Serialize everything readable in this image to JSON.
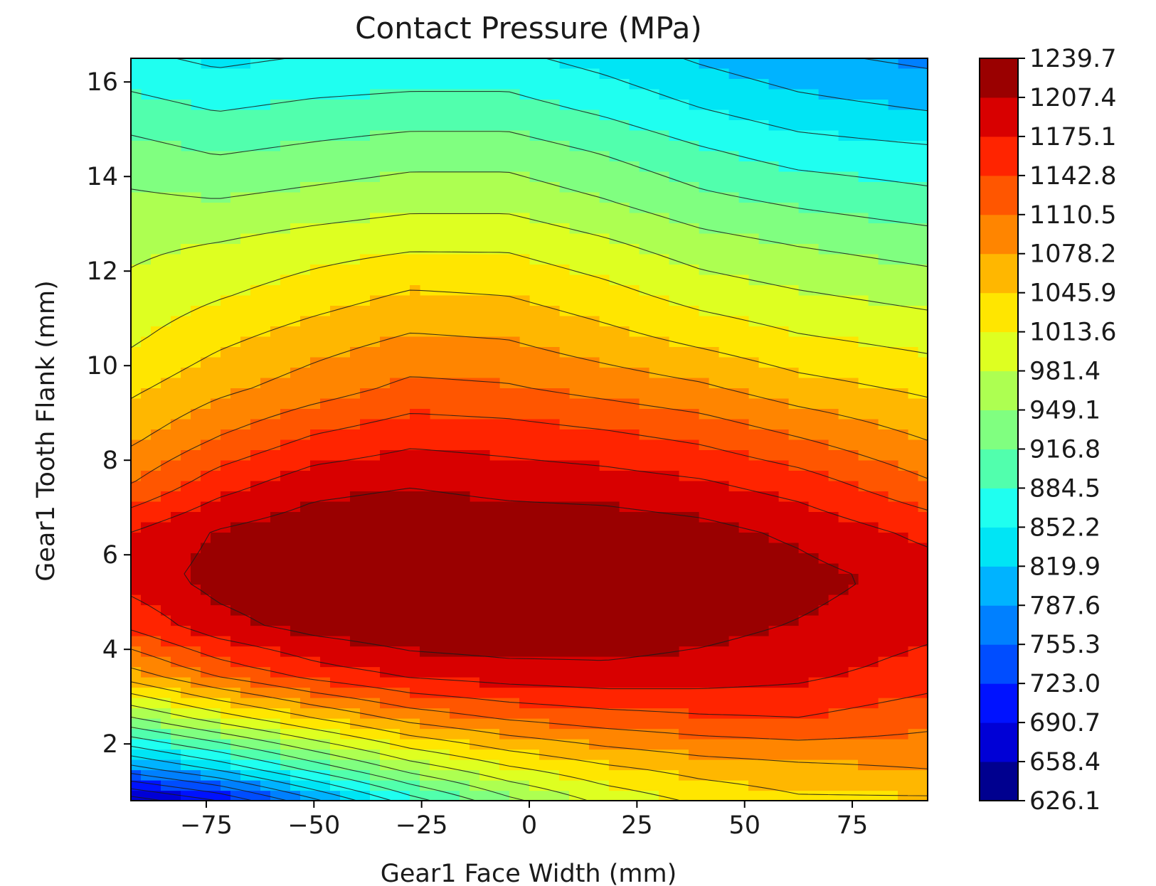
{
  "chart_data": {
    "type": "heatmap",
    "subtype": "filled-contour",
    "title": "Contact Pressure (MPa)",
    "xlabel": "Gear1 Face Width (mm)",
    "ylabel": "Gear1 Tooth Flank (mm)",
    "xlim": [
      -92.5,
      92.5
    ],
    "ylim": [
      0.8,
      16.5
    ],
    "xticks": [
      -75,
      -50,
      -25,
      0,
      25,
      50,
      75
    ],
    "xtick_labels": [
      "−75",
      "−50",
      "−25",
      "0",
      "25",
      "50",
      "75"
    ],
    "yticks": [
      2,
      4,
      6,
      8,
      10,
      12,
      14,
      16
    ],
    "ytick_labels": [
      "2",
      "4",
      "6",
      "8",
      "10",
      "12",
      "14",
      "16"
    ],
    "colorbar": {
      "colormap": "jet",
      "levels": [
        626.1,
        658.4,
        690.7,
        723.0,
        755.3,
        787.6,
        819.9,
        852.2,
        884.5,
        916.8,
        949.1,
        981.4,
        1013.6,
        1045.9,
        1078.2,
        1110.5,
        1142.8,
        1175.1,
        1207.4,
        1239.7
      ],
      "tick_labels": [
        "626.1",
        "658.4",
        "690.7",
        "723.0",
        "755.3",
        "787.6",
        "819.9",
        "852.2",
        "884.5",
        "916.8",
        "949.1",
        "981.4",
        "1013.6",
        "1045.9",
        "1078.2",
        "1110.5",
        "1142.8",
        "1175.1",
        "1207.4",
        "1239.7"
      ],
      "colors": [
        "#00008f",
        "#0000d6",
        "#0012ff",
        "#004dff",
        "#0080ff",
        "#00b3ff",
        "#00e5f5",
        "#1ffff0",
        "#51ffad",
        "#80ff80",
        "#adff51",
        "#deff21",
        "#ffe600",
        "#ffb700",
        "#ff8500",
        "#ff5600",
        "#ff2400",
        "#d80000",
        "#9a0000"
      ]
    },
    "grid": {
      "x": [
        -92.5,
        -72.5,
        -50,
        -27.5,
        -5,
        17.5,
        40,
        62.5,
        92.5
      ],
      "y": [
        0.8,
        1.5,
        2.5,
        3.5,
        4.5,
        5.5,
        6.5,
        7.5,
        8.5,
        9.5,
        10.5,
        11.5,
        12.5,
        13.5,
        14.5,
        15.5,
        16.5
      ],
      "z": [
        [
          640,
          690,
          780,
          870,
          940,
          990,
          1020,
          1040,
          1040
        ],
        [
          780,
          830,
          900,
          965,
          1010,
          1040,
          1060,
          1070,
          1080
        ],
        [
          940,
          990,
          1040,
          1085,
          1110,
          1125,
          1135,
          1140,
          1120
        ],
        [
          1070,
          1120,
          1160,
          1185,
          1195,
          1200,
          1195,
          1185,
          1160
        ],
        [
          1150,
          1195,
          1220,
          1233,
          1235,
          1228,
          1218,
          1205,
          1185
        ],
        [
          1190,
          1220,
          1237,
          1242,
          1242,
          1240,
          1235,
          1220,
          1195
        ],
        [
          1175,
          1210,
          1228,
          1235,
          1230,
          1228,
          1218,
          1200,
          1165
        ],
        [
          1110,
          1160,
          1195,
          1205,
          1195,
          1190,
          1180,
          1160,
          1115
        ],
        [
          1070,
          1110,
          1145,
          1165,
          1160,
          1150,
          1135,
          1110,
          1075
        ],
        [
          1040,
          1070,
          1095,
          1120,
          1115,
          1100,
          1085,
          1060,
          1040
        ],
        [
          1010,
          1040,
          1065,
          1085,
          1080,
          1060,
          1040,
          1020,
          1005
        ],
        [
          990,
          1010,
          1030,
          1050,
          1045,
          1025,
          1000,
          985,
          970
        ],
        [
          975,
          985,
          1000,
          1010,
          1010,
          990,
          965,
          950,
          935
        ],
        [
          955,
          950,
          960,
          970,
          970,
          950,
          925,
          910,
          895
        ],
        [
          930,
          915,
          925,
          935,
          935,
          915,
          890,
          870,
          860
        ],
        [
          895,
          880,
          890,
          895,
          895,
          875,
          850,
          830,
          815
        ],
        [
          860,
          845,
          855,
          860,
          860,
          840,
          815,
          795,
          780
        ]
      ]
    }
  }
}
